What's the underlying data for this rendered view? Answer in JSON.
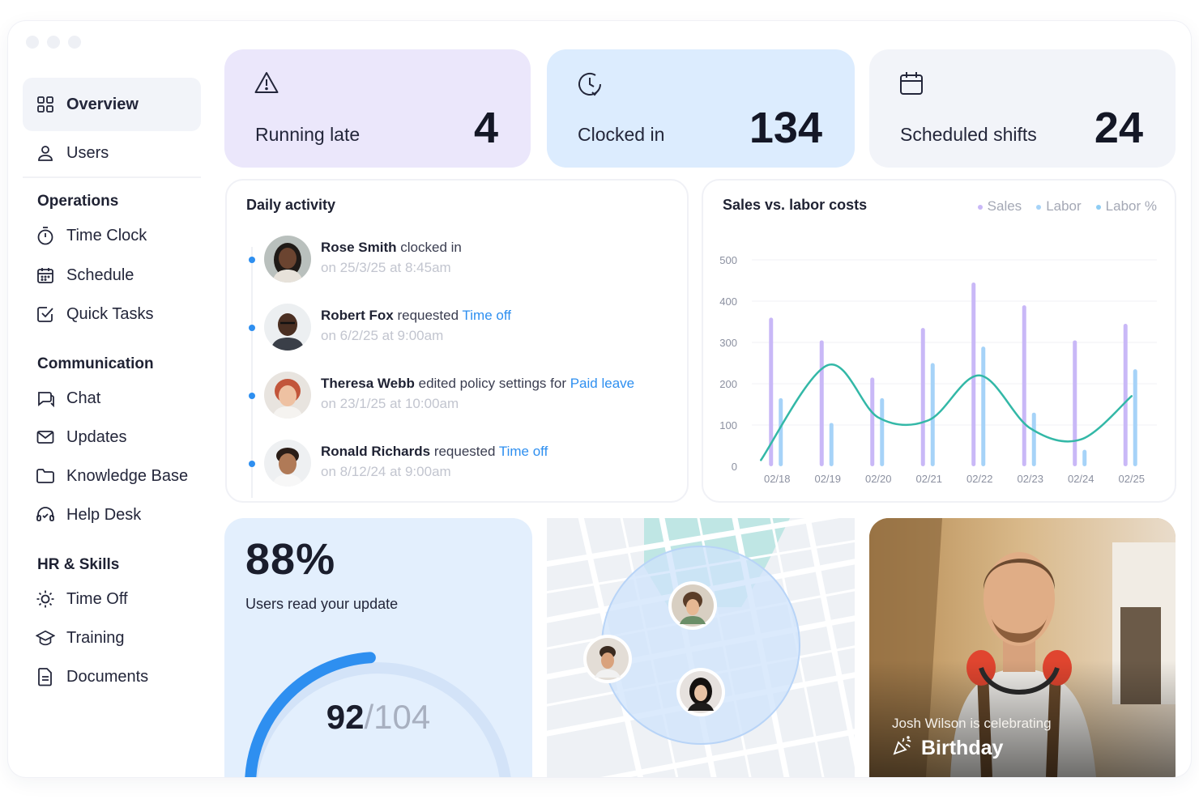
{
  "sidebar": {
    "items": [
      {
        "label": "Overview",
        "icon": "grid-icon",
        "active": true
      },
      {
        "label": "Users",
        "icon": "user-icon"
      }
    ],
    "sections": [
      {
        "title": "Operations",
        "items": [
          {
            "label": "Time Clock",
            "icon": "stopwatch-icon"
          },
          {
            "label": "Schedule",
            "icon": "calendar-icon"
          },
          {
            "label": "Quick Tasks",
            "icon": "checkbox-icon"
          }
        ]
      },
      {
        "title": "Communication",
        "items": [
          {
            "label": "Chat",
            "icon": "chat-icon"
          },
          {
            "label": "Updates",
            "icon": "mail-icon"
          },
          {
            "label": "Knowledge Base",
            "icon": "folder-icon"
          },
          {
            "label": "Help Desk",
            "icon": "headset-icon"
          }
        ]
      },
      {
        "title": "HR & Skills",
        "items": [
          {
            "label": "Time Off",
            "icon": "sun-icon"
          },
          {
            "label": "Training",
            "icon": "graduation-cap-icon"
          },
          {
            "label": "Documents",
            "icon": "document-icon"
          }
        ]
      }
    ]
  },
  "stats": {
    "late": {
      "label": "Running late",
      "value": "4",
      "icon": "warning-icon"
    },
    "clocked": {
      "label": "Clocked in",
      "value": "134",
      "icon": "clock-icon"
    },
    "shifts": {
      "label": "Scheduled shifts",
      "value": "24",
      "icon": "calendar-icon"
    }
  },
  "activity": {
    "title": "Daily activity",
    "items": [
      {
        "name": "Rose Smith",
        "action": " clocked in",
        "link": "",
        "when": "on 25/3/25 at 8:45am"
      },
      {
        "name": "Robert Fox",
        "action": " requested ",
        "link": "Time off",
        "when": "on 6/2/25 at 9:00am"
      },
      {
        "name": "Theresa Webb",
        "action": " edited policy settings for ",
        "link": "Paid leave",
        "when": "on 23/1/25 at 10:00am"
      },
      {
        "name": "Ronald Richards",
        "action": " requested ",
        "link": "Time off",
        "when": "on 8/12/24 at 9:00am"
      }
    ]
  },
  "chart_data": {
    "type": "bar",
    "title": "Sales vs. labor costs",
    "categories": [
      "02/18",
      "02/19",
      "02/20",
      "02/21",
      "02/22",
      "02/23",
      "02/24",
      "02/25"
    ],
    "yticks": [
      0,
      100,
      200,
      300,
      400,
      500
    ],
    "ylim": [
      0,
      500
    ],
    "legend": [
      "Sales",
      "Labor",
      "Labor %"
    ],
    "legend_position": "top-right",
    "grid": true,
    "series": [
      {
        "name": "Sales",
        "type": "bar",
        "color": "#c9b8f7",
        "values": [
          360,
          305,
          215,
          335,
          445,
          390,
          305,
          345
        ]
      },
      {
        "name": "Labor",
        "type": "bar",
        "color": "#a6d3f8",
        "values": [
          165,
          105,
          165,
          250,
          290,
          130,
          40,
          235
        ]
      },
      {
        "name": "Labor %",
        "type": "line",
        "color": "#33b8a7",
        "values": [
          15,
          245,
          118,
          112,
          220,
          92,
          65,
          170
        ]
      }
    ]
  },
  "engagement": {
    "percent": "88%",
    "caption": "Users read your update",
    "read": "92",
    "total": "/104",
    "ratio": 0.885
  },
  "birthday": {
    "line1": "Josh Wilson is celebrating",
    "line2": "Birthday",
    "icon": "party-popper-icon"
  },
  "colors": {
    "accent": "#2e8ff0",
    "late_bg": "#ebe7fb",
    "clocked_bg": "#dcecfe",
    "shifts_bg": "#f2f4f9"
  }
}
